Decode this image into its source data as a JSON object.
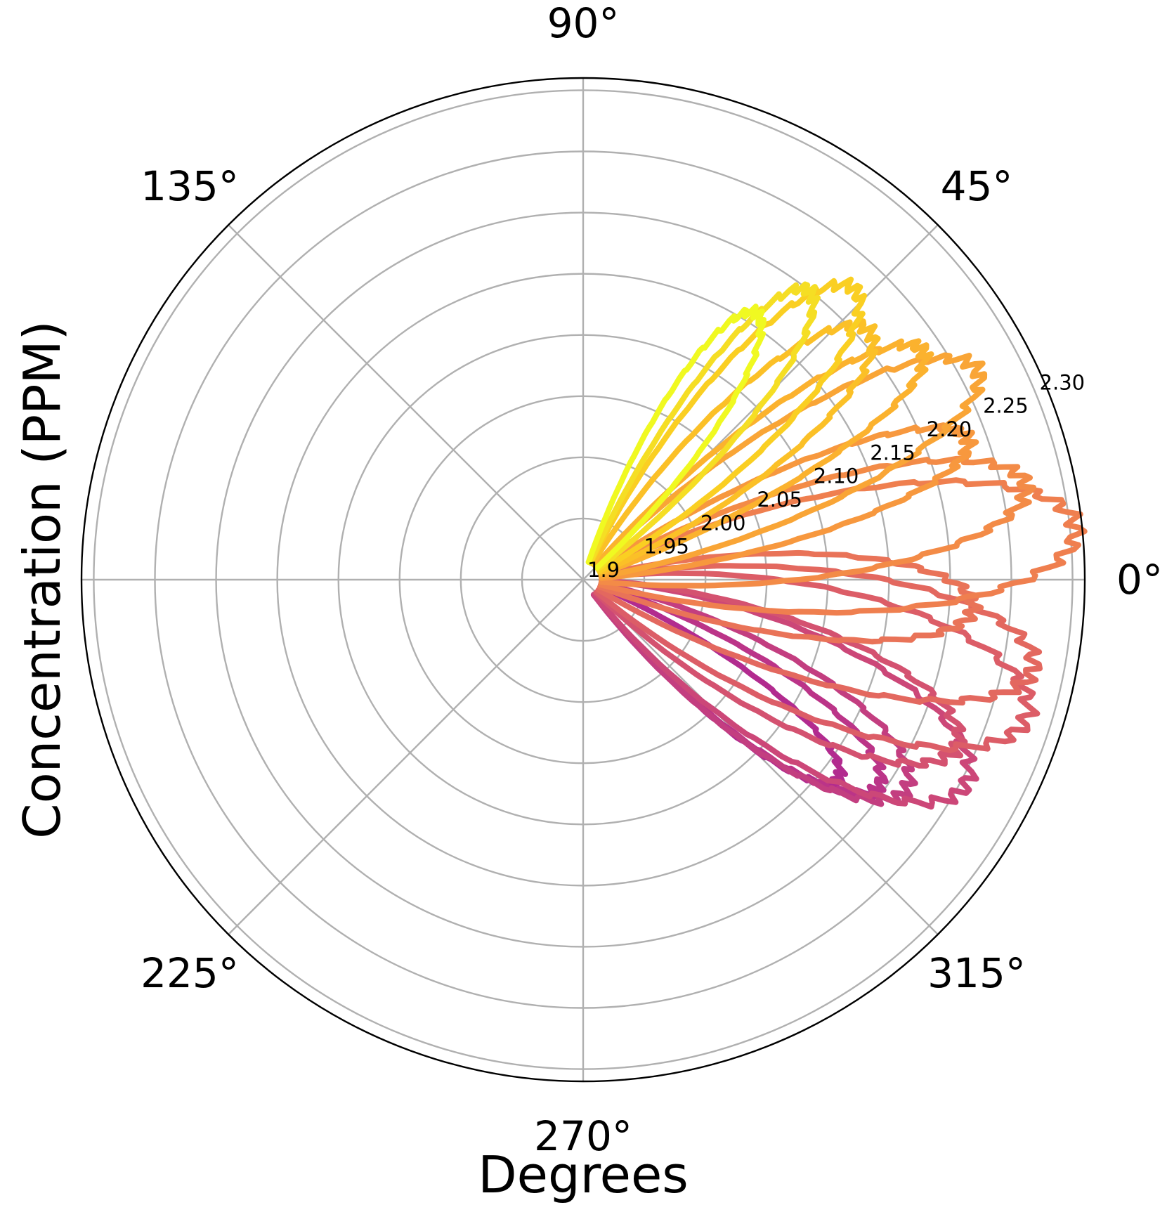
{
  "chart_data": {
    "type": "line",
    "projection": "polar",
    "xlabel": "Degrees",
    "ylabel": "Concentration (PPM)",
    "theta_ticks": [
      {
        "deg": 0,
        "label": "0°"
      },
      {
        "deg": 45,
        "label": "45°"
      },
      {
        "deg": 90,
        "label": "90°"
      },
      {
        "deg": 135,
        "label": "135°"
      },
      {
        "deg": 225,
        "label": "225°"
      },
      {
        "deg": 270,
        "label": "270°"
      },
      {
        "deg": 315,
        "label": "315°"
      }
    ],
    "theta_grid_deg": [
      0,
      45,
      90,
      135,
      180,
      225,
      270,
      315
    ],
    "r_ticks": [
      {
        "value": 1.9,
        "label": "1.9"
      },
      {
        "value": 1.95,
        "label": "1.95"
      },
      {
        "value": 2.0,
        "label": "2.00"
      },
      {
        "value": 2.05,
        "label": "2.05"
      },
      {
        "value": 2.1,
        "label": "2.10"
      },
      {
        "value": 2.15,
        "label": "2.15"
      },
      {
        "value": 2.2,
        "label": "2.20"
      },
      {
        "value": 2.25,
        "label": "2.25"
      },
      {
        "value": 2.3,
        "label": "2.30"
      }
    ],
    "rlim": [
      1.9,
      2.31
    ],
    "r_label_angle_deg": 22.5,
    "grid": true,
    "colormap": "plasma",
    "color_range": [
      "#b52a8e",
      "#f0f921"
    ],
    "series": [
      {
        "center_deg": -38,
        "peak": 2.165,
        "halfwidth_deg": 5,
        "color": "#b22b8f"
      },
      {
        "center_deg": -35,
        "peak": 2.195,
        "halfwidth_deg": 6,
        "color": "#bb3488"
      },
      {
        "center_deg": -33,
        "peak": 2.215,
        "halfwidth_deg": 7,
        "color": "#c33e80"
      },
      {
        "center_deg": -28,
        "peak": 2.255,
        "halfwidth_deg": 8,
        "color": "#cc4778"
      },
      {
        "center_deg": -24,
        "peak": 2.235,
        "halfwidth_deg": 7,
        "color": "#d45270"
      },
      {
        "center_deg": -17,
        "peak": 2.28,
        "halfwidth_deg": 8,
        "color": "#dc5d67"
      },
      {
        "center_deg": -11,
        "peak": 2.275,
        "halfwidth_deg": 7,
        "color": "#e3685f"
      },
      {
        "center_deg": -4,
        "peak": 2.22,
        "halfwidth_deg": 6,
        "color": "#e97358"
      },
      {
        "center_deg": 6,
        "peak": 2.305,
        "halfwidth_deg": 7,
        "color": "#ef7f4f"
      },
      {
        "center_deg": 12,
        "peak": 2.27,
        "halfwidth_deg": 6,
        "color": "#f38b47"
      },
      {
        "center_deg": 20,
        "peak": 2.235,
        "halfwidth_deg": 5,
        "color": "#f7983e"
      },
      {
        "center_deg": 28,
        "peak": 2.265,
        "halfwidth_deg": 6,
        "color": "#f9a536"
      },
      {
        "center_deg": 34,
        "peak": 2.235,
        "halfwidth_deg": 5,
        "color": "#fbb22e"
      },
      {
        "center_deg": 41,
        "peak": 2.21,
        "halfwidth_deg": 6,
        "color": "#fbc027"
      },
      {
        "center_deg": 47,
        "peak": 2.225,
        "halfwidth_deg": 6,
        "color": "#facf22"
      },
      {
        "center_deg": 52,
        "peak": 2.2,
        "halfwidth_deg": 5,
        "color": "#f5de24"
      },
      {
        "center_deg": 57,
        "peak": 2.16,
        "halfwidth_deg": 5,
        "color": "#f0f921"
      }
    ]
  }
}
